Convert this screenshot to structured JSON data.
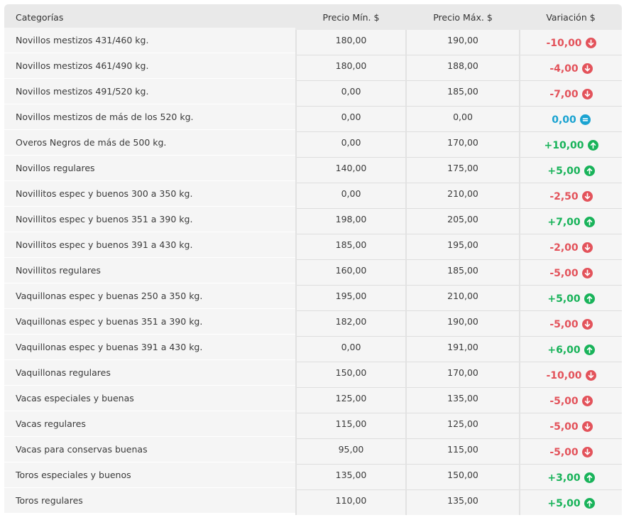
{
  "table": {
    "headers": [
      "Categorías",
      "Precio Mín. $",
      "Precio Máx. $",
      "Variación $"
    ],
    "rows": [
      {
        "category": "Novillos mestizos 431/460 kg.",
        "min": "180,00",
        "max": "190,00",
        "variation": "-10,00",
        "trend": "down"
      },
      {
        "category": "Novillos mestizos 461/490 kg.",
        "min": "180,00",
        "max": "188,00",
        "variation": "-4,00",
        "trend": "down"
      },
      {
        "category": "Novillos mestizos 491/520 kg.",
        "min": "0,00",
        "max": "185,00",
        "variation": "-7,00",
        "trend": "down"
      },
      {
        "category": "Novillos mestizos de más de los 520 kg.",
        "min": "0,00",
        "max": "0,00",
        "variation": "0,00",
        "trend": "equal"
      },
      {
        "category": "Overos Negros de más de 500 kg.",
        "min": "0,00",
        "max": "170,00",
        "variation": "+10,00",
        "trend": "up"
      },
      {
        "category": "Novillos regulares",
        "min": "140,00",
        "max": "175,00",
        "variation": "+5,00",
        "trend": "up"
      },
      {
        "category": "Novillitos espec y buenos 300 a 350 kg.",
        "min": "0,00",
        "max": "210,00",
        "variation": "-2,50",
        "trend": "down"
      },
      {
        "category": "Novillitos espec y buenos 351 a 390 kg.",
        "min": "198,00",
        "max": "205,00",
        "variation": "+7,00",
        "trend": "up"
      },
      {
        "category": "Novillitos espec y buenos 391 a 430 kg.",
        "min": "185,00",
        "max": "195,00",
        "variation": "-2,00",
        "trend": "down"
      },
      {
        "category": "Novillitos regulares",
        "min": "160,00",
        "max": "185,00",
        "variation": "-5,00",
        "trend": "down"
      },
      {
        "category": "Vaquillonas espec y buenas 250 a 350 kg.",
        "min": "195,00",
        "max": "210,00",
        "variation": "+5,00",
        "trend": "up"
      },
      {
        "category": "Vaquillonas espec y buenas 351 a 390 kg.",
        "min": "182,00",
        "max": "190,00",
        "variation": "-5,00",
        "trend": "down"
      },
      {
        "category": "Vaquillonas espec y buenas 391 a 430 kg.",
        "min": "0,00",
        "max": "191,00",
        "variation": "+6,00",
        "trend": "up"
      },
      {
        "category": "Vaquillonas regulares",
        "min": "150,00",
        "max": "170,00",
        "variation": "-10,00",
        "trend": "down"
      },
      {
        "category": "Vacas especiales y buenas",
        "min": "125,00",
        "max": "135,00",
        "variation": "-5,00",
        "trend": "down"
      },
      {
        "category": "Vacas regulares",
        "min": "115,00",
        "max": "125,00",
        "variation": "-5,00",
        "trend": "down"
      },
      {
        "category": "Vacas para conservas buenas",
        "min": "95,00",
        "max": "115,00",
        "variation": "-5,00",
        "trend": "down"
      },
      {
        "category": "Toros especiales y buenos",
        "min": "135,00",
        "max": "150,00",
        "variation": "+3,00",
        "trend": "up"
      },
      {
        "category": "Toros regulares",
        "min": "110,00",
        "max": "135,00",
        "variation": "+5,00",
        "trend": "up"
      }
    ]
  },
  "colors": {
    "down": "#e3535b",
    "up": "#19b35a",
    "equal": "#1aa3d1"
  },
  "icons": {
    "down": "arrow-down-circle-icon",
    "up": "arrow-up-circle-icon",
    "equal": "equals-circle-icon"
  }
}
